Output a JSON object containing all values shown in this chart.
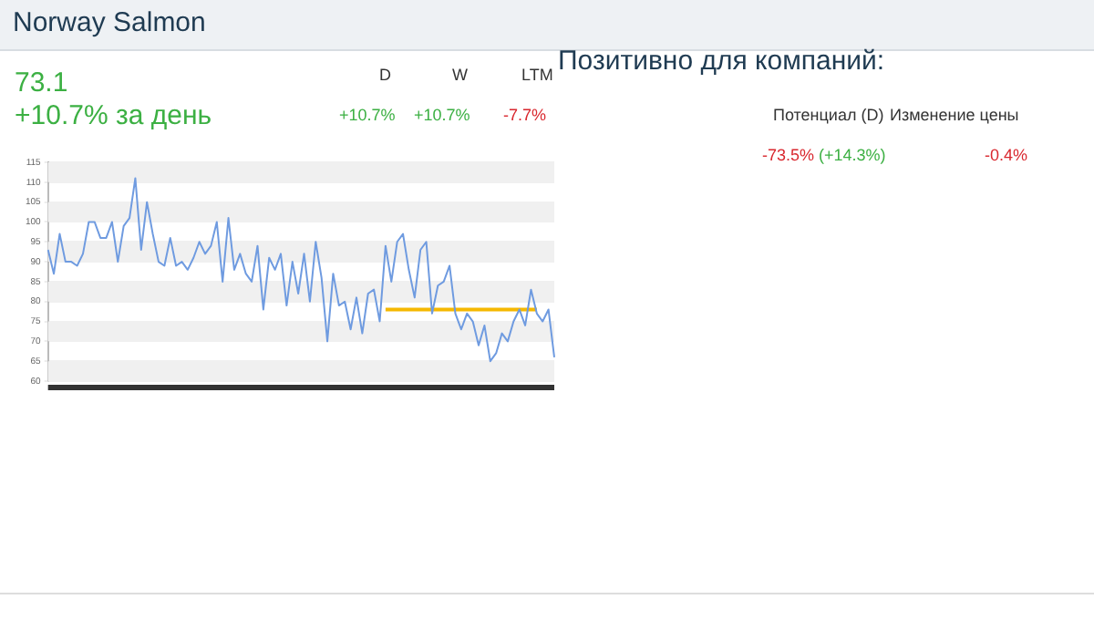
{
  "chart_data": {
    "type": "line",
    "title": "Norway Salmon",
    "annotations": [
      "73.1",
      "+10.7% за день",
      "D",
      "W",
      "LTM",
      "+10.7%",
      "+10.7%",
      "-7.7%",
      "Позитивно для компаний:",
      "Потенциал (D)",
      "Изменение цены",
      "-73.5% (+14.3%)",
      "-0.4%"
    ],
    "categories": [
      null,
      null,
      null,
      null,
      null,
      null,
      null,
      null,
      null,
      null,
      null,
      null,
      null,
      null,
      null,
      null,
      null,
      null,
      null,
      null,
      null,
      null,
      null,
      null,
      null,
      null,
      null,
      null,
      null,
      null,
      null,
      null,
      null,
      null,
      null,
      null,
      null,
      null,
      null,
      null,
      null,
      null,
      null,
      null,
      null,
      null,
      null,
      null,
      null,
      null,
      null,
      null,
      null,
      null,
      null,
      null,
      null,
      null,
      null,
      null,
      null,
      null,
      null,
      null,
      null,
      null,
      null,
      null,
      null,
      null,
      null,
      null,
      null,
      null,
      null,
      null,
      null,
      null,
      null,
      null,
      null,
      null,
      null,
      null,
      null,
      null,
      null,
      null
    ],
    "series": [
      {
        "color": "#6f9be0",
        "values": [
          93,
          87,
          97,
          90,
          90,
          89,
          92,
          100,
          100,
          96,
          96,
          100,
          90,
          99,
          101,
          111,
          93,
          105,
          97,
          90,
          89,
          96,
          89,
          90,
          88,
          91,
          95,
          92,
          94,
          100,
          85,
          101,
          88,
          92,
          87,
          85,
          94,
          78,
          91,
          88,
          92,
          79,
          90,
          82,
          92,
          80,
          95,
          86,
          70,
          87,
          79,
          80,
          73,
          81,
          72,
          82,
          83,
          75,
          94,
          85,
          95,
          97,
          88,
          81,
          93,
          95,
          77,
          84,
          85,
          89,
          77,
          73,
          77,
          75,
          69,
          74,
          65,
          67,
          72,
          70,
          75,
          78,
          74,
          83,
          77,
          75,
          78,
          66
        ]
      },
      {
        "color": "#f5b800",
        "values": [
          null,
          null,
          null,
          null,
          null,
          null,
          null,
          null,
          null,
          null,
          null,
          null,
          null,
          null,
          null,
          null,
          null,
          null,
          null,
          null,
          null,
          null,
          null,
          null,
          null,
          null,
          null,
          null,
          null,
          null,
          null,
          null,
          null,
          null,
          null,
          null,
          null,
          null,
          null,
          null,
          null,
          null,
          null,
          null,
          null,
          null,
          null,
          null,
          null,
          null,
          null,
          null,
          null,
          null,
          null,
          null,
          null,
          null,
          78,
          78,
          78,
          78,
          78,
          78,
          78,
          78,
          78,
          78,
          78,
          78,
          78,
          78,
          78,
          78,
          78,
          78,
          78,
          78,
          78,
          78,
          78,
          78,
          78,
          78,
          78,
          null,
          null,
          null
        ]
      }
    ],
    "ylim": [
      60,
      115
    ],
    "yticks": [
      60,
      65,
      70,
      75,
      80,
      85,
      90,
      95,
      100,
      105,
      110,
      115
    ],
    "grid": "y",
    "legend": false,
    "tick_labels": "y",
    "marker": "none",
    "line_style": "solid"
  }
}
